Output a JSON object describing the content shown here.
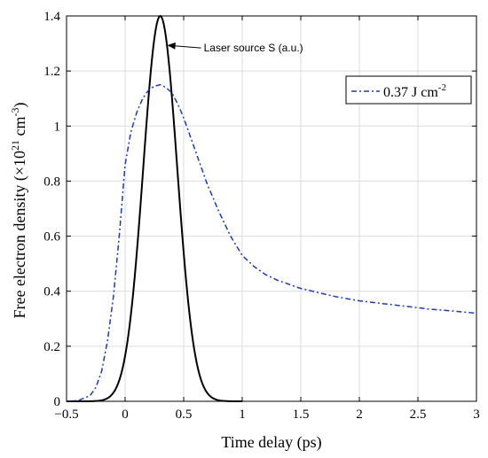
{
  "chart_data": {
    "type": "line",
    "xlabel": "Time delay (ps)",
    "ylabel": {
      "pre": "Free electron density (×10",
      "exp1": "21",
      "mid": " cm",
      "exp2": "-3",
      "post": ")"
    },
    "xlim": [
      -0.5,
      3
    ],
    "ylim": [
      0,
      1.4
    ],
    "xticks": [
      -0.5,
      0,
      0.5,
      1,
      1.5,
      2,
      2.5,
      3
    ],
    "xtick_labels": [
      "−0.5",
      "0",
      "0.5",
      "1",
      "1.5",
      "2",
      "2.5",
      "3"
    ],
    "yticks": [
      0,
      0.2,
      0.4,
      0.6,
      0.8,
      1,
      1.2,
      1.4
    ],
    "ytick_labels": [
      "0",
      "0.2",
      "0.4",
      "0.6",
      "0.8",
      "1",
      "1.2",
      "1.4"
    ],
    "grid": true,
    "legend_position": "top-right",
    "annotation": {
      "text": "Laser source S (a.u.)",
      "points_to": [
        0.3,
        1.39
      ]
    },
    "series": [
      {
        "name": "Laser source S (a.u.)",
        "legend": false,
        "color": "#000000",
        "style": "solid",
        "gaussian": {
          "peak": 1.4,
          "center": 0.3,
          "sigma": 0.145,
          "x_from": -0.5,
          "x_to": 1.0
        }
      },
      {
        "legend_label": {
          "pre": "0.37 J cm",
          "exp": "-2"
        },
        "legend": true,
        "color": "#1f3aa6",
        "style": "dashdot",
        "x": [
          -0.5,
          -0.4,
          -0.3,
          -0.25,
          -0.2,
          -0.15,
          -0.1,
          -0.05,
          0,
          0.05,
          0.1,
          0.15,
          0.2,
          0.25,
          0.3,
          0.35,
          0.4,
          0.45,
          0.5,
          0.55,
          0.6,
          0.65,
          0.7,
          0.8,
          0.9,
          1.0,
          1.1,
          1.2,
          1.3,
          1.4,
          1.5,
          1.6,
          1.8,
          2.0,
          2.2,
          2.4,
          2.6,
          2.8,
          3.0
        ],
        "y": [
          0,
          0.003,
          0.02,
          0.05,
          0.11,
          0.22,
          0.38,
          0.6,
          0.86,
          0.98,
          1.05,
          1.1,
          1.13,
          1.145,
          1.15,
          1.14,
          1.12,
          1.08,
          1.03,
          0.97,
          0.91,
          0.85,
          0.79,
          0.69,
          0.6,
          0.53,
          0.49,
          0.46,
          0.44,
          0.425,
          0.41,
          0.4,
          0.38,
          0.365,
          0.355,
          0.345,
          0.335,
          0.328,
          0.32
        ]
      }
    ]
  }
}
